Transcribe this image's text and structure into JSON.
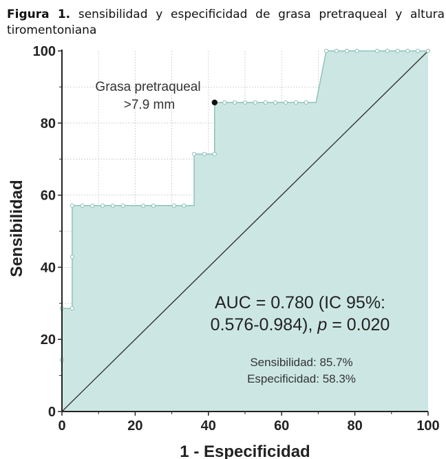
{
  "caption": {
    "label": "Figura 1.",
    "text": "sensibilidad y especificidad de grasa pretraqueal y altura tiromentoniana"
  },
  "chart_data": {
    "type": "line",
    "subtype": "roc_curve_step_area",
    "xlabel": "1 - Especificidad",
    "ylabel": "Sensibilidad",
    "xlim": [
      0,
      100
    ],
    "ylim": [
      0,
      100
    ],
    "xticks": [
      0,
      20,
      40,
      60,
      80,
      100
    ],
    "yticks": [
      0,
      20,
      40,
      60,
      80,
      100
    ],
    "grid": true,
    "series": [
      {
        "curve": [
          [
            0,
            0
          ],
          [
            0,
            14.3
          ],
          [
            0,
            28.6
          ],
          [
            2.8,
            28.6
          ],
          [
            2.8,
            42.9
          ],
          [
            2.8,
            57.1
          ],
          [
            36.1,
            57.1
          ],
          [
            36.1,
            71.4
          ],
          [
            41.7,
            71.4
          ],
          [
            41.7,
            85.7
          ],
          [
            69.4,
            85.7
          ],
          [
            72.2,
            100
          ],
          [
            100,
            100
          ]
        ],
        "markers": [
          [
            0,
            14.3
          ],
          [
            0,
            28.6
          ],
          [
            2.8,
            28.6
          ],
          [
            2.8,
            42.9
          ],
          [
            2.8,
            57.1
          ],
          [
            5.6,
            57.1
          ],
          [
            8.3,
            57.1
          ],
          [
            11.1,
            57.1
          ],
          [
            13.9,
            57.1
          ],
          [
            16.7,
            57.1
          ],
          [
            22.2,
            57.1
          ],
          [
            25,
            57.1
          ],
          [
            30.6,
            57.1
          ],
          [
            33.3,
            57.1
          ],
          [
            36.1,
            71.4
          ],
          [
            38.9,
            71.4
          ],
          [
            41.7,
            71.4
          ],
          [
            44.4,
            85.7
          ],
          [
            47.2,
            85.7
          ],
          [
            50,
            85.7
          ],
          [
            52.8,
            85.7
          ],
          [
            55.6,
            85.7
          ],
          [
            58.3,
            85.7
          ],
          [
            61.1,
            85.7
          ],
          [
            63.9,
            85.7
          ],
          [
            66.7,
            85.7
          ],
          [
            72.2,
            100
          ],
          [
            75,
            100
          ],
          [
            77.8,
            100
          ],
          [
            80.6,
            100
          ],
          [
            86.1,
            100
          ],
          [
            88.9,
            100
          ],
          [
            91.7,
            100
          ],
          [
            94.4,
            100
          ],
          [
            97.2,
            100
          ],
          [
            100,
            100
          ]
        ]
      },
      {
        "reference_line": [
          [
            0,
            0
          ],
          [
            100,
            100
          ]
        ]
      }
    ],
    "highlight_point": [
      41.7,
      85.7
    ],
    "annotations": {
      "cut_line1": "Grasa pretraqueal",
      "cut_line2": ">7.9 mm",
      "auc_line1": "AUC = 0.780 (IC 95%:",
      "auc_line2_prefix": "0.576-0.984), ",
      "auc_p_symbol": "p",
      "auc_line2_suffix": " = 0.020",
      "sens": "Sensibilidad: 85.7%",
      "spec": "Especificidad: 58.3%"
    },
    "colors": {
      "fill": "#cce7e3",
      "curve": "#8cc2ba",
      "marker_stroke": "#8fbdb6",
      "diagonal": "#333333",
      "grid": "#c6c6c6",
      "axis": "#222222"
    }
  }
}
